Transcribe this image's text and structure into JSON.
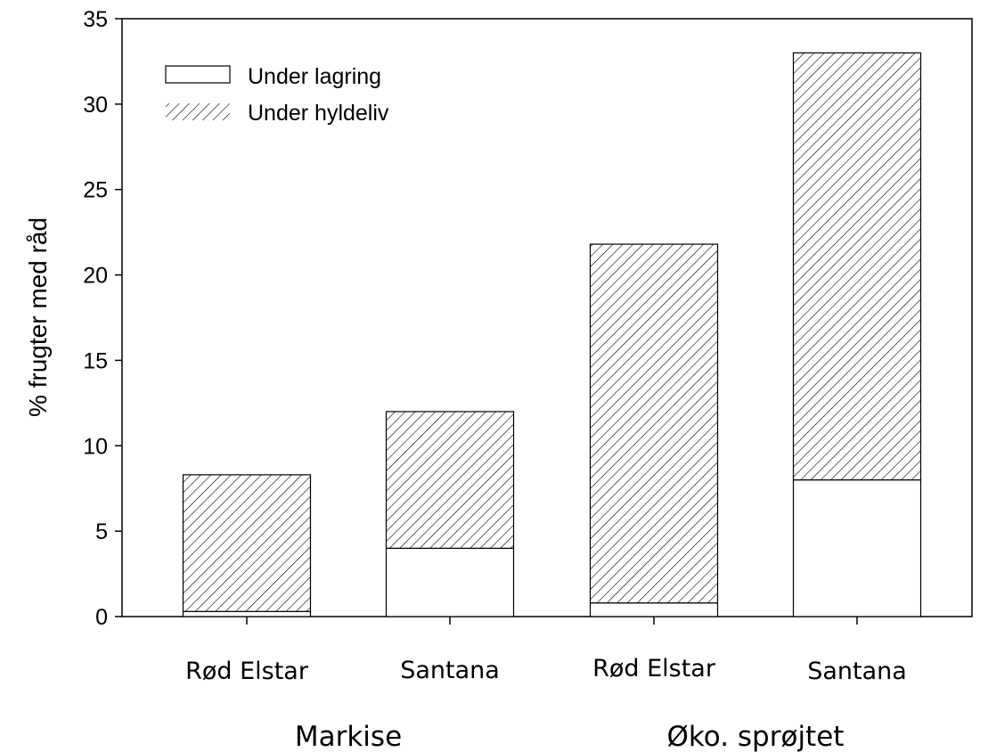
{
  "chart_data": {
    "type": "bar",
    "stacked": true,
    "ylabel": "% frugter med råd",
    "ylim": [
      0,
      35
    ],
    "yticks": [
      0,
      5,
      10,
      15,
      20,
      25,
      30,
      35
    ],
    "grid": false,
    "legend_position": "top-left",
    "categories": [
      "Rød Elstar",
      "Santana",
      "Rød Elstar",
      "Santana"
    ],
    "groups": [
      {
        "label": "Markise",
        "categories": [
          0,
          1
        ]
      },
      {
        "label": "Øko. sprøjtet",
        "categories": [
          2,
          3
        ]
      }
    ],
    "series": [
      {
        "name": "Under lagring",
        "fill": "white",
        "values": [
          0.3,
          4.0,
          0.8,
          8.0
        ]
      },
      {
        "name": "Under hyldeliv",
        "fill": "hatched",
        "values": [
          8.0,
          8.0,
          21.0,
          25.0
        ]
      }
    ],
    "totals": [
      8.3,
      12.0,
      21.8,
      33.0
    ]
  }
}
